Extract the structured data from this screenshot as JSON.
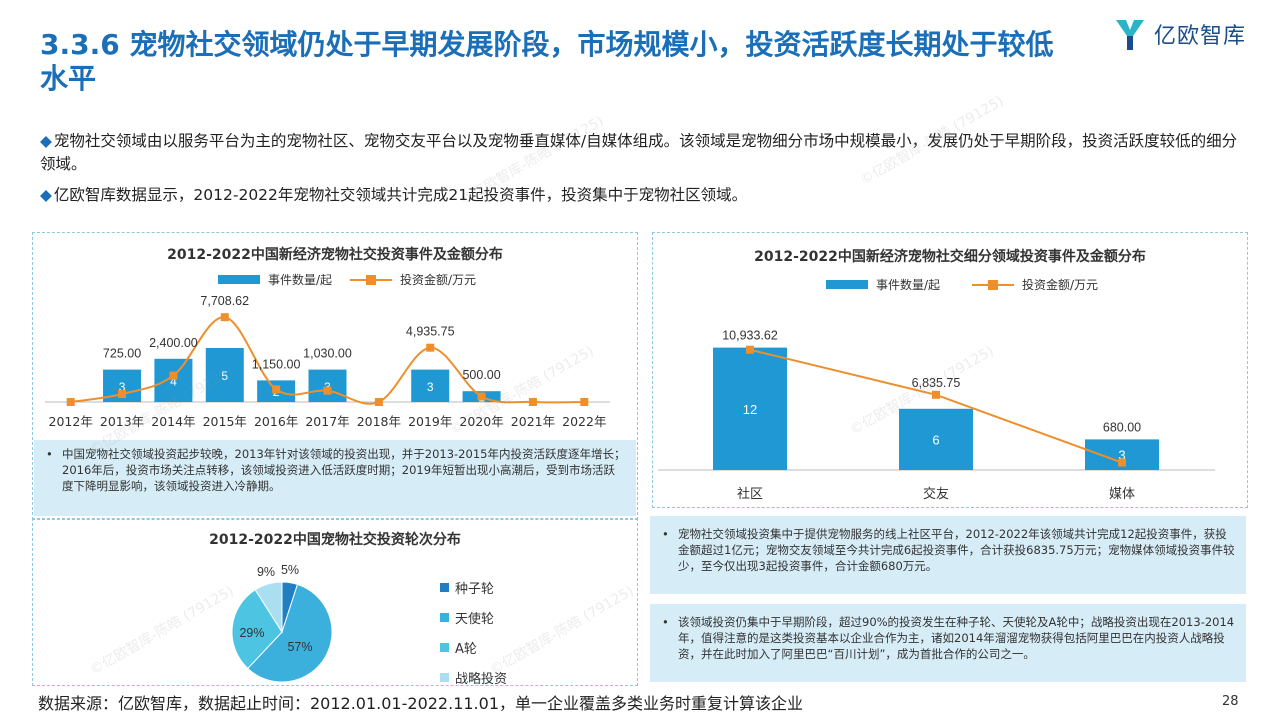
{
  "header": {
    "title": "3.3.6 宠物社交领域仍处于早期发展阶段，市场规模小，投资活跃度长期处于较低水平",
    "logo_text": "亿欧智库"
  },
  "bullets": [
    "宠物社交领域由以服务平台为主的宠物社区、宠物交友平台以及宠物垂直媒体/自媒体组成。该领域是宠物细分市场中规模最小，发展仍处于早期阶段，投资活跃度较低的细分领域。",
    "亿欧智库数据显示，2012-2022年宠物社交领域共计完成21起投资事件，投资集中于宠物社区领域。"
  ],
  "chart1": {
    "title": "2012-2022中国新经济宠物社交投资事件及金额分布",
    "legend_bar": "事件数量/起",
    "legend_line": "投资金额/万元",
    "note": "中国宠物社交领域投资起步较晚，2013年针对该领域的投资出现，并于2013-2015年内投资活跃度逐年增长；2016年后，投资市场关注点转移，该领域投资进入低活跃度时期；2019年短暂出现小高潮后，受到市场活跃度下降明显影响，该领域投资进入冷静期。"
  },
  "chart2": {
    "title": "2012-2022中国新经济宠物社交细分领域投资事件及金额分布",
    "legend_bar": "事件数量/起",
    "legend_line": "投资金额/万元",
    "note1": "宠物社交领域投资集中于提供宠物服务的线上社区平台，2012-2022年该领域共计完成12起投资事件，获投金额超过1亿元；宠物交友领域至今共计完成6起投资事件，合计获投6835.75万元；宠物媒体领域投资事件较少，至今仅出现3起投资事件，合计金额680万元。",
    "note2": "该领域投资仍集中于早期阶段，超过90%的投资发生在种子轮、天使轮及A轮中；战略投资出现在2013-2014年，值得注意的是这类投资基本以企业合作为主，诸如2014年溜溜宠物获得包括阿里巴巴在内投资人战略投资，并在此时加入了阿里巴巴“百川计划”，成为首批合作的公司之一。"
  },
  "chart3": {
    "title": "2012-2022中国宠物社交投资轮次分布"
  },
  "footer": {
    "source": "数据来源：亿欧智库，数据起止时间：2012.01.01-2022.11.01，单一企业覆盖多类业务时重复计算该企业",
    "page": "28"
  },
  "colors": {
    "accent": "#1a6fb8",
    "bar": "#1f98d3",
    "line": "#ef8f2b",
    "note_bg": "#d6ecf6"
  },
  "chart_data": [
    {
      "type": "bar",
      "title": "2012-2022中国新经济宠物社交投资事件及金额分布",
      "categories": [
        "2012年",
        "2013年",
        "2014年",
        "2015年",
        "2016年",
        "2017年",
        "2018年",
        "2019年",
        "2020年",
        "2021年",
        "2022年"
      ],
      "series": [
        {
          "name": "事件数量/起",
          "type": "bar",
          "values": [
            0,
            3,
            4,
            5,
            2,
            3,
            0,
            3,
            1,
            0,
            0
          ]
        },
        {
          "name": "投资金额/万元",
          "type": "line",
          "values": [
            0,
            725.0,
            2400.0,
            7708.62,
            1150.0,
            1030.0,
            0,
            4935.75,
            500.0,
            0,
            0
          ]
        }
      ],
      "bar_labels": [
        "",
        "3",
        "4",
        "5",
        "2",
        "3",
        "",
        "3",
        "1",
        "",
        ""
      ],
      "line_labels": [
        "",
        "725.00",
        "2,400.00",
        "7,708.62",
        "1,150.00",
        "1,030.00",
        "",
        "4,935.75",
        "500.00",
        "",
        ""
      ]
    },
    {
      "type": "bar",
      "title": "2012-2022中国新经济宠物社交细分领域投资事件及金额分布",
      "categories": [
        "社区",
        "交友",
        "媒体"
      ],
      "series": [
        {
          "name": "事件数量/起",
          "type": "bar",
          "values": [
            12,
            6,
            3
          ]
        },
        {
          "name": "投资金额/万元",
          "type": "line",
          "values": [
            10933.62,
            6835.75,
            680.0
          ]
        }
      ],
      "bar_labels": [
        "12",
        "6",
        "3"
      ],
      "line_labels": [
        "10,933.62",
        "6,835.75",
        "680.00"
      ]
    },
    {
      "type": "pie",
      "title": "2012-2022中国宠物社交投资轮次分布",
      "labels": [
        "种子轮",
        "天使轮",
        "A轮",
        "战略投资"
      ],
      "values": [
        5,
        57,
        29,
        9
      ],
      "value_labels": [
        "5%",
        "57%",
        "29%",
        "9%"
      ],
      "colors": [
        "#1f7fc0",
        "#3cb0dc",
        "#4cc4e2",
        "#a9dff0"
      ]
    }
  ]
}
